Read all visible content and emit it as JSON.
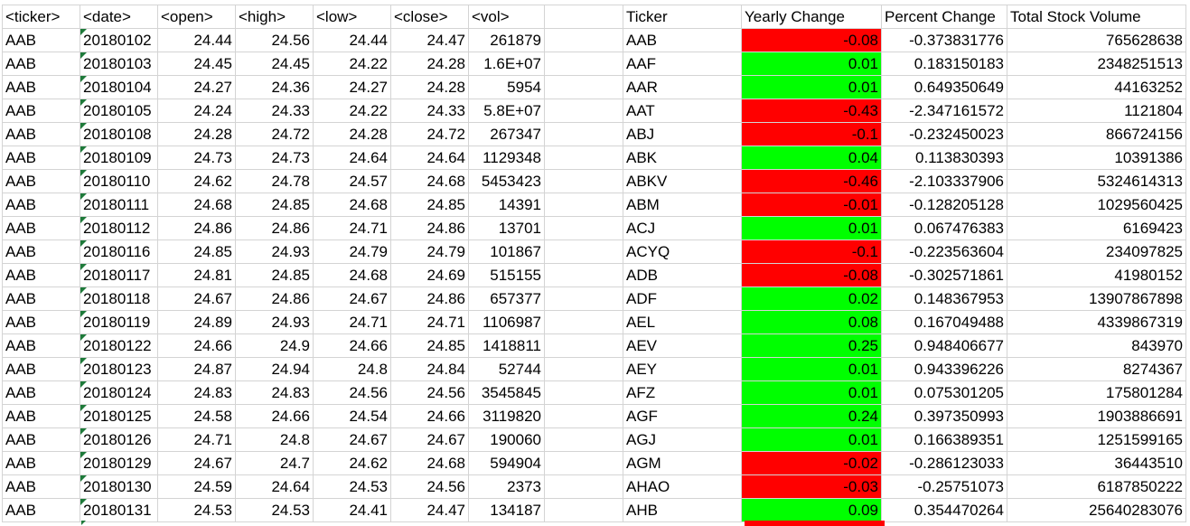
{
  "colors": {
    "positive": "#00ff00",
    "negative": "#ff0000",
    "text_indicator": "#1e7a3a",
    "gridline": "#d4d4d4"
  },
  "headers": {
    "ticker": "<ticker>",
    "date": "<date>",
    "open": "<open>",
    "high": "<high>",
    "low": "<low>",
    "close": "<close>",
    "vol": "<vol>",
    "summary_ticker": "Ticker",
    "yearly_change": "Yearly Change",
    "percent_change": "Percent Change",
    "total_volume": "Total Stock Volume"
  },
  "rows": [
    {
      "ticker": "AAB",
      "date": "20180102",
      "open": "24.44",
      "high": "24.56",
      "low": "24.44",
      "close": "24.47",
      "vol": "261879",
      "s_ticker": "AAB",
      "change": "-0.08",
      "percent": "-0.373831776",
      "total": "765628638",
      "status": "negative"
    },
    {
      "ticker": "AAB",
      "date": "20180103",
      "open": "24.45",
      "high": "24.45",
      "low": "24.22",
      "close": "24.28",
      "vol": "1.6E+07",
      "s_ticker": "AAF",
      "change": "0.01",
      "percent": "0.183150183",
      "total": "2348251513",
      "status": "positive"
    },
    {
      "ticker": "AAB",
      "date": "20180104",
      "open": "24.27",
      "high": "24.36",
      "low": "24.27",
      "close": "24.28",
      "vol": "5954",
      "s_ticker": "AAR",
      "change": "0.01",
      "percent": "0.649350649",
      "total": "44163252",
      "status": "positive"
    },
    {
      "ticker": "AAB",
      "date": "20180105",
      "open": "24.24",
      "high": "24.33",
      "low": "24.22",
      "close": "24.33",
      "vol": "5.8E+07",
      "s_ticker": "AAT",
      "change": "-0.43",
      "percent": "-2.347161572",
      "total": "1121804",
      "status": "negative"
    },
    {
      "ticker": "AAB",
      "date": "20180108",
      "open": "24.28",
      "high": "24.72",
      "low": "24.28",
      "close": "24.72",
      "vol": "267347",
      "s_ticker": "ABJ",
      "change": "-0.1",
      "percent": "-0.232450023",
      "total": "866724156",
      "status": "negative"
    },
    {
      "ticker": "AAB",
      "date": "20180109",
      "open": "24.73",
      "high": "24.73",
      "low": "24.64",
      "close": "24.64",
      "vol": "1129348",
      "s_ticker": "ABK",
      "change": "0.04",
      "percent": "0.113830393",
      "total": "10391386",
      "status": "positive"
    },
    {
      "ticker": "AAB",
      "date": "20180110",
      "open": "24.62",
      "high": "24.78",
      "low": "24.57",
      "close": "24.68",
      "vol": "5453423",
      "s_ticker": "ABKV",
      "change": "-0.46",
      "percent": "-2.103337906",
      "total": "5324614313",
      "status": "negative"
    },
    {
      "ticker": "AAB",
      "date": "20180111",
      "open": "24.68",
      "high": "24.85",
      "low": "24.68",
      "close": "24.85",
      "vol": "14391",
      "s_ticker": "ABM",
      "change": "-0.01",
      "percent": "-0.128205128",
      "total": "1029560425",
      "status": "negative"
    },
    {
      "ticker": "AAB",
      "date": "20180112",
      "open": "24.86",
      "high": "24.86",
      "low": "24.71",
      "close": "24.86",
      "vol": "13701",
      "s_ticker": "ACJ",
      "change": "0.01",
      "percent": "0.067476383",
      "total": "6169423",
      "status": "positive"
    },
    {
      "ticker": "AAB",
      "date": "20180116",
      "open": "24.85",
      "high": "24.93",
      "low": "24.79",
      "close": "24.79",
      "vol": "101867",
      "s_ticker": "ACYQ",
      "change": "-0.1",
      "percent": "-0.223563604",
      "total": "234097825",
      "status": "negative"
    },
    {
      "ticker": "AAB",
      "date": "20180117",
      "open": "24.81",
      "high": "24.85",
      "low": "24.68",
      "close": "24.69",
      "vol": "515155",
      "s_ticker": "ADB",
      "change": "-0.08",
      "percent": "-0.302571861",
      "total": "41980152",
      "status": "negative"
    },
    {
      "ticker": "AAB",
      "date": "20180118",
      "open": "24.67",
      "high": "24.86",
      "low": "24.67",
      "close": "24.86",
      "vol": "657377",
      "s_ticker": "ADF",
      "change": "0.02",
      "percent": "0.148367953",
      "total": "13907867898",
      "status": "positive"
    },
    {
      "ticker": "AAB",
      "date": "20180119",
      "open": "24.89",
      "high": "24.93",
      "low": "24.71",
      "close": "24.71",
      "vol": "1106987",
      "s_ticker": "AEL",
      "change": "0.08",
      "percent": "0.167049488",
      "total": "4339867319",
      "status": "positive"
    },
    {
      "ticker": "AAB",
      "date": "20180122",
      "open": "24.66",
      "high": "24.9",
      "low": "24.66",
      "close": "24.85",
      "vol": "1418811",
      "s_ticker": "AEV",
      "change": "0.25",
      "percent": "0.948406677",
      "total": "843970",
      "status": "positive"
    },
    {
      "ticker": "AAB",
      "date": "20180123",
      "open": "24.87",
      "high": "24.94",
      "low": "24.8",
      "close": "24.84",
      "vol": "52744",
      "s_ticker": "AEY",
      "change": "0.01",
      "percent": "0.943396226",
      "total": "8274367",
      "status": "positive"
    },
    {
      "ticker": "AAB",
      "date": "20180124",
      "open": "24.83",
      "high": "24.83",
      "low": "24.56",
      "close": "24.56",
      "vol": "3545845",
      "s_ticker": "AFZ",
      "change": "0.01",
      "percent": "0.075301205",
      "total": "175801284",
      "status": "positive"
    },
    {
      "ticker": "AAB",
      "date": "20180125",
      "open": "24.58",
      "high": "24.66",
      "low": "24.54",
      "close": "24.66",
      "vol": "3119820",
      "s_ticker": "AGF",
      "change": "0.24",
      "percent": "0.397350993",
      "total": "1903886691",
      "status": "positive"
    },
    {
      "ticker": "AAB",
      "date": "20180126",
      "open": "24.71",
      "high": "24.8",
      "low": "24.67",
      "close": "24.67",
      "vol": "190060",
      "s_ticker": "AGJ",
      "change": "0.01",
      "percent": "0.166389351",
      "total": "1251599165",
      "status": "positive"
    },
    {
      "ticker": "AAB",
      "date": "20180129",
      "open": "24.67",
      "high": "24.7",
      "low": "24.62",
      "close": "24.68",
      "vol": "594904",
      "s_ticker": "AGM",
      "change": "-0.02",
      "percent": "-0.286123033",
      "total": "36443510",
      "status": "negative"
    },
    {
      "ticker": "AAB",
      "date": "20180130",
      "open": "24.59",
      "high": "24.64",
      "low": "24.53",
      "close": "24.56",
      "vol": "2373",
      "s_ticker": "AHAO",
      "change": "-0.03",
      "percent": "-0.25751073",
      "total": "6187850222",
      "status": "negative"
    },
    {
      "ticker": "AAB",
      "date": "20180131",
      "open": "24.53",
      "high": "24.53",
      "low": "24.41",
      "close": "24.47",
      "vol": "134187",
      "s_ticker": "AHB",
      "change": "0.09",
      "percent": "0.354470264",
      "total": "25640283076",
      "status": "positive"
    }
  ]
}
